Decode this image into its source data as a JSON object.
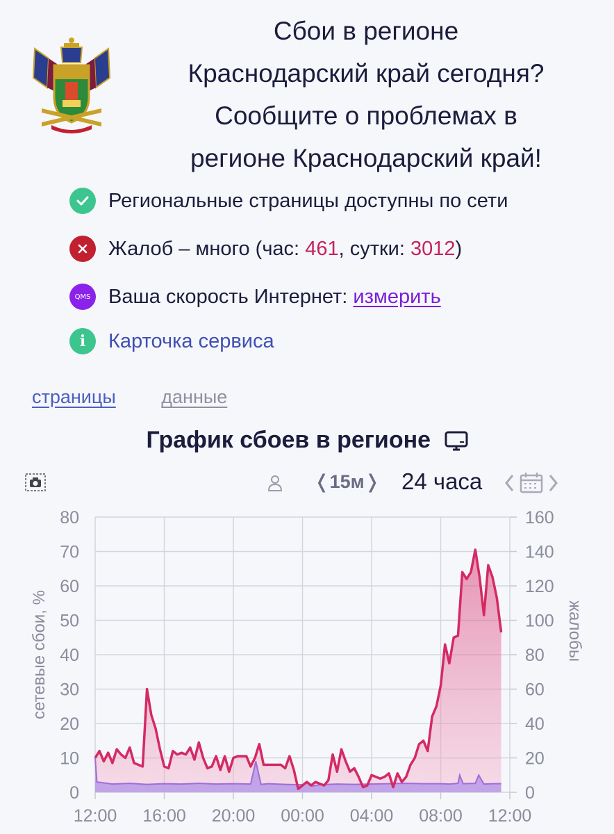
{
  "header": {
    "title": "Сбои в регионе Краснодарский край сегодня? Сообщите о проблемах в регионе Краснодарский край!",
    "title_lines": [
      "Сбои в регионе",
      "Краснодарский край сегодня?",
      "Сообщите о проблемах в",
      "регионе Краснодарский край!"
    ],
    "emblem_icon": "krasnodar-coat-of-arms"
  },
  "status": {
    "available_text": "Региональные страницы доступны по сети",
    "complaints_prefix": "Жалоб – много (час: ",
    "complaints_hour": "461",
    "complaints_mid": ", сутки: ",
    "complaints_day": "3012",
    "complaints_suffix": ")",
    "speed_label": "Ваша скорость Интернет: ",
    "speed_link": "измерить",
    "qms_badge": "QMS",
    "service_card": "Карточка сервиса"
  },
  "tabs": [
    "страницы",
    "данные"
  ],
  "chart_header": {
    "title": "График сбоев в регионе",
    "step": "❬15м❭",
    "period": "24 часа"
  },
  "colors": {
    "complaints_line": "#d42a63",
    "complaints_fill": "#e8759c",
    "outage_line": "#a26cd8",
    "outage_fill": "#b79be8",
    "ok": "#3cc58e",
    "bad": "#c0202f",
    "qms": "#8a22ea"
  },
  "chart_data": {
    "type": "area",
    "x_ticks": [
      "12:00",
      "16:00",
      "20:00",
      "00:00",
      "04:00",
      "08:00",
      "12:00"
    ],
    "x_range_hours": [
      0,
      24
    ],
    "y_left": {
      "label": "сетевые сбои, %",
      "ticks": [
        0,
        10,
        20,
        30,
        40,
        50,
        60,
        70,
        80
      ],
      "range": [
        0,
        80
      ]
    },
    "y_right": {
      "label": "жалобы",
      "ticks": [
        0,
        20,
        40,
        60,
        80,
        100,
        120,
        140,
        160
      ],
      "range": [
        0,
        160
      ]
    },
    "grid": true,
    "series": [
      {
        "axis": "right",
        "points": [
          [
            0,
            20
          ],
          [
            0.25,
            24
          ],
          [
            0.5,
            18
          ],
          [
            0.75,
            23
          ],
          [
            1,
            17
          ],
          [
            1.25,
            25
          ],
          [
            1.5,
            22
          ],
          [
            1.75,
            20
          ],
          [
            2,
            26
          ],
          [
            2.25,
            17
          ],
          [
            2.5,
            16
          ],
          [
            2.75,
            15
          ],
          [
            3,
            60
          ],
          [
            3.25,
            45
          ],
          [
            3.5,
            37
          ],
          [
            3.75,
            25
          ],
          [
            4,
            15
          ],
          [
            4.25,
            14
          ],
          [
            4.5,
            24
          ],
          [
            4.75,
            22
          ],
          [
            5,
            23
          ],
          [
            5.25,
            22
          ],
          [
            5.5,
            26
          ],
          [
            5.75,
            19
          ],
          [
            6,
            29
          ],
          [
            6.25,
            20
          ],
          [
            6.5,
            14
          ],
          [
            6.75,
            15
          ],
          [
            7,
            21
          ],
          [
            7.25,
            13
          ],
          [
            7.5,
            21
          ],
          [
            7.75,
            12
          ],
          [
            8,
            20
          ],
          [
            8.25,
            21
          ],
          [
            8.5,
            21
          ],
          [
            8.75,
            21
          ],
          [
            9,
            15
          ],
          [
            9.25,
            20
          ],
          [
            9.5,
            28
          ],
          [
            9.75,
            16
          ],
          [
            10,
            16
          ],
          [
            10.25,
            16
          ],
          [
            10.5,
            16
          ],
          [
            10.75,
            16
          ],
          [
            11,
            14
          ],
          [
            11.25,
            21
          ],
          [
            11.5,
            13
          ],
          [
            11.75,
            2
          ],
          [
            12,
            4
          ],
          [
            12.25,
            6
          ],
          [
            12.5,
            4
          ],
          [
            12.75,
            6
          ],
          [
            13,
            5
          ],
          [
            13.25,
            4
          ],
          [
            13.5,
            7
          ],
          [
            13.75,
            22
          ],
          [
            14,
            12
          ],
          [
            14.25,
            25
          ],
          [
            14.5,
            18
          ],
          [
            14.75,
            12
          ],
          [
            15,
            14
          ],
          [
            15.25,
            9
          ],
          [
            15.5,
            3
          ],
          [
            15.75,
            4
          ],
          [
            16,
            10
          ],
          [
            16.25,
            9
          ],
          [
            16.5,
            8
          ],
          [
            16.75,
            9
          ],
          [
            17,
            11
          ],
          [
            17.25,
            3
          ],
          [
            17.5,
            11
          ],
          [
            17.75,
            6
          ],
          [
            18,
            9
          ],
          [
            18.25,
            16
          ],
          [
            18.5,
            20
          ],
          [
            18.75,
            28
          ],
          [
            19,
            30
          ],
          [
            19.25,
            24
          ],
          [
            19.5,
            44
          ],
          [
            19.75,
            50
          ],
          [
            20,
            62
          ],
          [
            20.25,
            86
          ],
          [
            20.5,
            75
          ],
          [
            20.75,
            90
          ],
          [
            21,
            91
          ],
          [
            21.25,
            128
          ],
          [
            21.5,
            124
          ],
          [
            21.75,
            128
          ],
          [
            22,
            141
          ],
          [
            22.25,
            125
          ],
          [
            22.5,
            103
          ],
          [
            22.75,
            132
          ],
          [
            23,
            125
          ],
          [
            23.25,
            113
          ],
          [
            23.5,
            93
          ]
        ]
      },
      {
        "axis": "left",
        "points": [
          [
            0,
            10
          ],
          [
            0.1,
            3
          ],
          [
            1,
            2.4
          ],
          [
            2,
            2.6
          ],
          [
            3,
            2.3
          ],
          [
            4,
            2.5
          ],
          [
            5,
            2.4
          ],
          [
            6,
            2.6
          ],
          [
            7,
            2.4
          ],
          [
            8,
            2.5
          ],
          [
            9,
            2.4
          ],
          [
            9.3,
            9
          ],
          [
            9.6,
            2.3
          ],
          [
            10,
            2.5
          ],
          [
            11,
            2.3
          ],
          [
            12,
            2.2
          ],
          [
            12.3,
            3
          ],
          [
            12.6,
            1.8
          ],
          [
            13,
            2.2
          ],
          [
            14,
            2.4
          ],
          [
            15,
            2.3
          ],
          [
            16,
            2.4
          ],
          [
            17,
            2.5
          ],
          [
            18,
            2.6
          ],
          [
            19,
            2.5
          ],
          [
            20,
            2.5
          ],
          [
            20.5,
            2.4
          ],
          [
            21,
            2.6
          ],
          [
            21.1,
            5
          ],
          [
            21.3,
            2.5
          ],
          [
            22,
            2.6
          ],
          [
            22.2,
            5
          ],
          [
            22.5,
            2.4
          ],
          [
            23,
            2.5
          ],
          [
            23.5,
            2.5
          ]
        ]
      }
    ]
  }
}
